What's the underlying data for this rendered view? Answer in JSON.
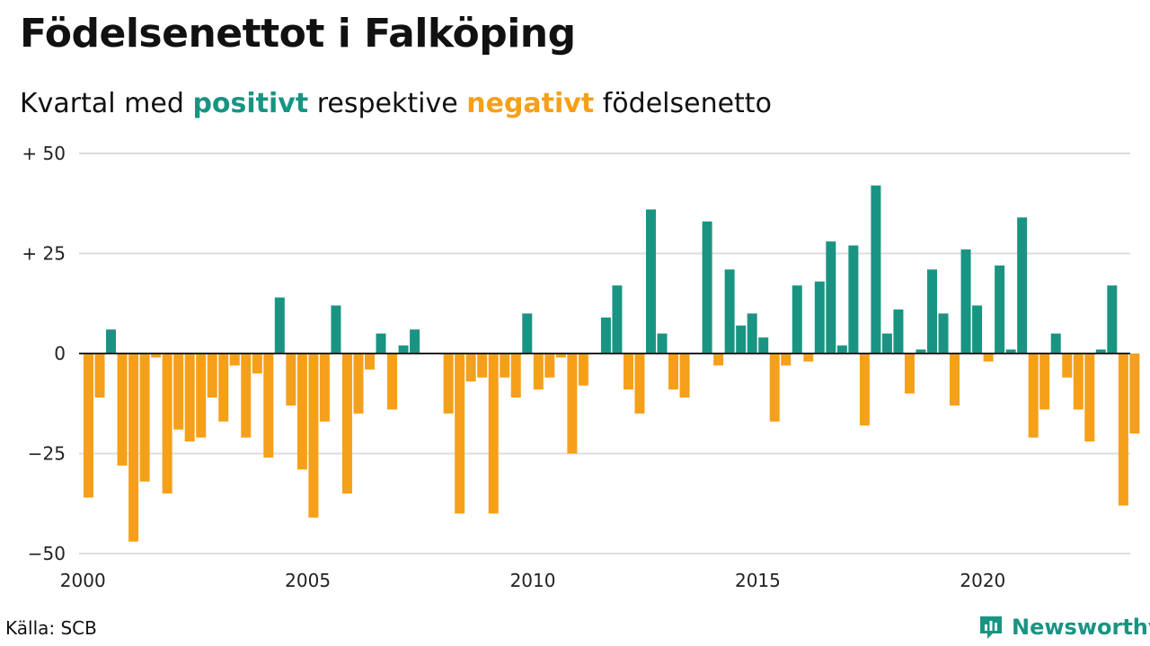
{
  "title": "Födelsenettot i Falköping",
  "subtitle": {
    "prefix": "Kvartal med",
    "positive": "positivt",
    "middle": "respektive",
    "negative": "negativt",
    "suffix": "födelsenetto"
  },
  "source": "Källa: SCB",
  "brand": "Newsworthy",
  "colors": {
    "positive": "#1a9482",
    "negative": "#f5a01a",
    "grid": "#dddddd",
    "axis": "#222222"
  },
  "chart_data": {
    "type": "bar",
    "x_start": "2000 Q1",
    "x_ticks": [
      "2000",
      "2005",
      "2010",
      "2015",
      "2020"
    ],
    "y_ticks": [
      "+ 50",
      "+ 25",
      "0",
      "−25",
      "−50"
    ],
    "ylim": [
      -50,
      50
    ],
    "grid": true,
    "values": [
      -36,
      -11,
      6,
      -28,
      -47,
      -32,
      -1,
      -35,
      -19,
      -22,
      -21,
      -11,
      -17,
      -3,
      -21,
      -5,
      -26,
      14,
      -13,
      -29,
      -41,
      -17,
      12,
      -35,
      -15,
      -4,
      5,
      -14,
      2,
      6,
      0,
      0,
      -15,
      -40,
      -7,
      -6,
      -40,
      -6,
      -11,
      10,
      -9,
      -6,
      -1,
      -25,
      -8,
      0,
      9,
      17,
      -9,
      -15,
      36,
      5,
      -9,
      -11,
      0,
      33,
      -3,
      21,
      7,
      10,
      4,
      -17,
      -3,
      17,
      -2,
      18,
      28,
      2,
      27,
      -18,
      42,
      5,
      11,
      -10,
      1,
      21,
      10,
      -13,
      26,
      12,
      -2,
      22,
      1,
      34,
      -21,
      -14,
      5,
      -6,
      -14,
      -22,
      1,
      17,
      -38,
      -20
    ]
  }
}
